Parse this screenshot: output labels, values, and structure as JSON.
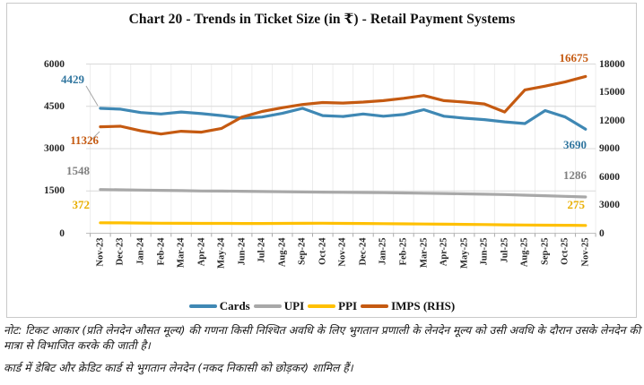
{
  "title": "Chart 20 - Trends in Ticket Size (in ₹) - Retail Payment Systems",
  "notes": {
    "note1": "नोट: टिकट आकार (प्रति लेनदेन औसत मूल्य) की गणना किसी निश्चित अवधि के लिए भुगतान प्रणाली के लेनदेन मूल्य को उसी अवधि के दौरान उसके लेनदेन की मात्रा से विभाजित करके की जाती है।",
    "note2": "कार्ड में डेबिट और क्रेडिट कार्ड से भुगतान लेनदेन (नकद निकासी को छोड़कर) शामिल हैं।"
  },
  "legend": {
    "items": [
      "Cards",
      "UPI",
      "PPI",
      "IMPS (RHS)"
    ]
  },
  "colors": {
    "gridline": "#d9d9d9",
    "vertical_gridline": "#ececec",
    "axis_line": "#bfbfbf",
    "tick_mark": "#ababab",
    "leader_line": "#a6a6a6",
    "text": "#262626"
  },
  "chart_data": {
    "type": "line",
    "title": "Chart 20 - Trends in Ticket Size (in ₹) - Retail Payment Systems",
    "grid": true,
    "legend_position": "bottom",
    "categories": [
      "Nov-23",
      "Dec-23",
      "Jan-24",
      "Feb-24",
      "Mar-24",
      "Apr-24",
      "May-24",
      "Jun-24",
      "Jul-24",
      "Aug-24",
      "Sep-24",
      "Oct-24",
      "Nov-24",
      "Dec-24",
      "Jan-25",
      "Feb-25",
      "Mar-25",
      "Apr-25",
      "May-25",
      "Jun-25",
      "Jul-25",
      "Aug-25",
      "Sep-25",
      "Oct-25",
      "Nov-25"
    ],
    "left_axis": {
      "ticks": [
        0,
        1500,
        3000,
        4500,
        6000
      ],
      "range": [
        0,
        6000
      ]
    },
    "right_axis": {
      "ticks": [
        0,
        3000,
        6000,
        9000,
        12000,
        15000,
        18000
      ],
      "range": [
        0,
        18000
      ]
    },
    "series": [
      {
        "name": "Cards",
        "axis": "left",
        "color": "#3f88b4",
        "label_color": "#31769f",
        "values": [
          4429,
          4400,
          4280,
          4230,
          4300,
          4240,
          4170,
          4080,
          4120,
          4250,
          4430,
          4170,
          4140,
          4230,
          4150,
          4210,
          4380,
          4150,
          4080,
          4030,
          3950,
          3890,
          4350,
          4120,
          3690
        ]
      },
      {
        "name": "UPI",
        "axis": "left",
        "color": "#a8a8a8",
        "label_color": "#808080",
        "values": [
          1548,
          1540,
          1530,
          1520,
          1510,
          1500,
          1495,
          1488,
          1480,
          1472,
          1465,
          1458,
          1450,
          1445,
          1438,
          1430,
          1420,
          1410,
          1398,
          1385,
          1370,
          1350,
          1330,
          1308,
          1286
        ]
      },
      {
        "name": "PPI",
        "axis": "left",
        "color": "#ffc000",
        "label_color": "#e8ae00",
        "values": [
          372,
          368,
          362,
          357,
          353,
          350,
          348,
          346,
          345,
          348,
          351,
          354,
          350,
          345,
          340,
          334,
          328,
          322,
          315,
          308,
          300,
          293,
          287,
          281,
          275
        ]
      },
      {
        "name": "IMPS (RHS)",
        "axis": "right",
        "color": "#c55a11",
        "label_color": "#c55a11",
        "values": [
          11326,
          11380,
          10900,
          10550,
          10850,
          10750,
          11150,
          12350,
          12950,
          13350,
          13700,
          13900,
          13850,
          13950,
          14100,
          14350,
          14650,
          14100,
          13950,
          13750,
          12900,
          15250,
          15650,
          16100,
          16675
        ]
      }
    ],
    "point_labels": [
      {
        "series": "Cards",
        "category": "Nov-23",
        "value": 4429,
        "text": "4429"
      },
      {
        "series": "IMPS (RHS)",
        "category": "Nov-23",
        "value": 11326,
        "text": "11326"
      },
      {
        "series": "UPI",
        "category": "Nov-23",
        "value": 1548,
        "text": "1548"
      },
      {
        "series": "PPI",
        "category": "Nov-23",
        "value": 372,
        "text": "372"
      },
      {
        "series": "IMPS (RHS)",
        "category": "Nov-25",
        "value": 16675,
        "text": "16675"
      },
      {
        "series": "Cards",
        "category": "Nov-25",
        "value": 3690,
        "text": "3690"
      },
      {
        "series": "UPI",
        "category": "Nov-25",
        "value": 1286,
        "text": "1286"
      },
      {
        "series": "PPI",
        "category": "Nov-25",
        "value": 275,
        "text": "275"
      }
    ]
  }
}
